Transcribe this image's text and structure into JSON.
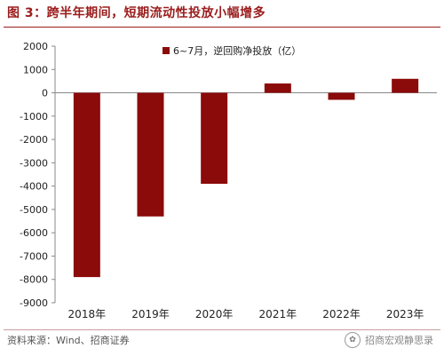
{
  "figure": {
    "title": "图 3：跨半年期间，短期流动性投放小幅增多",
    "source": "资料来源：Wind、招商证券",
    "watermark": "招商宏观静思录",
    "watermark_icon": "wechat-icon"
  },
  "chart_data": {
    "type": "bar",
    "categories": [
      "2018年",
      "2019年",
      "2020年",
      "2021年",
      "2022年",
      "2023年"
    ],
    "series": [
      {
        "name": "6~7月，逆回购净投放（亿）",
        "values": [
          -7900,
          -5300,
          -3900,
          400,
          -300,
          600
        ],
        "color": "#8b0a0a"
      }
    ],
    "ylim": [
      -9000,
      2000
    ],
    "yticks": [
      2000,
      1000,
      0,
      -1000,
      -2000,
      -3000,
      -4000,
      -5000,
      -6000,
      -7000,
      -8000,
      -9000
    ],
    "xlabel": "",
    "ylabel": "",
    "legend": "top-center",
    "grid": false
  }
}
